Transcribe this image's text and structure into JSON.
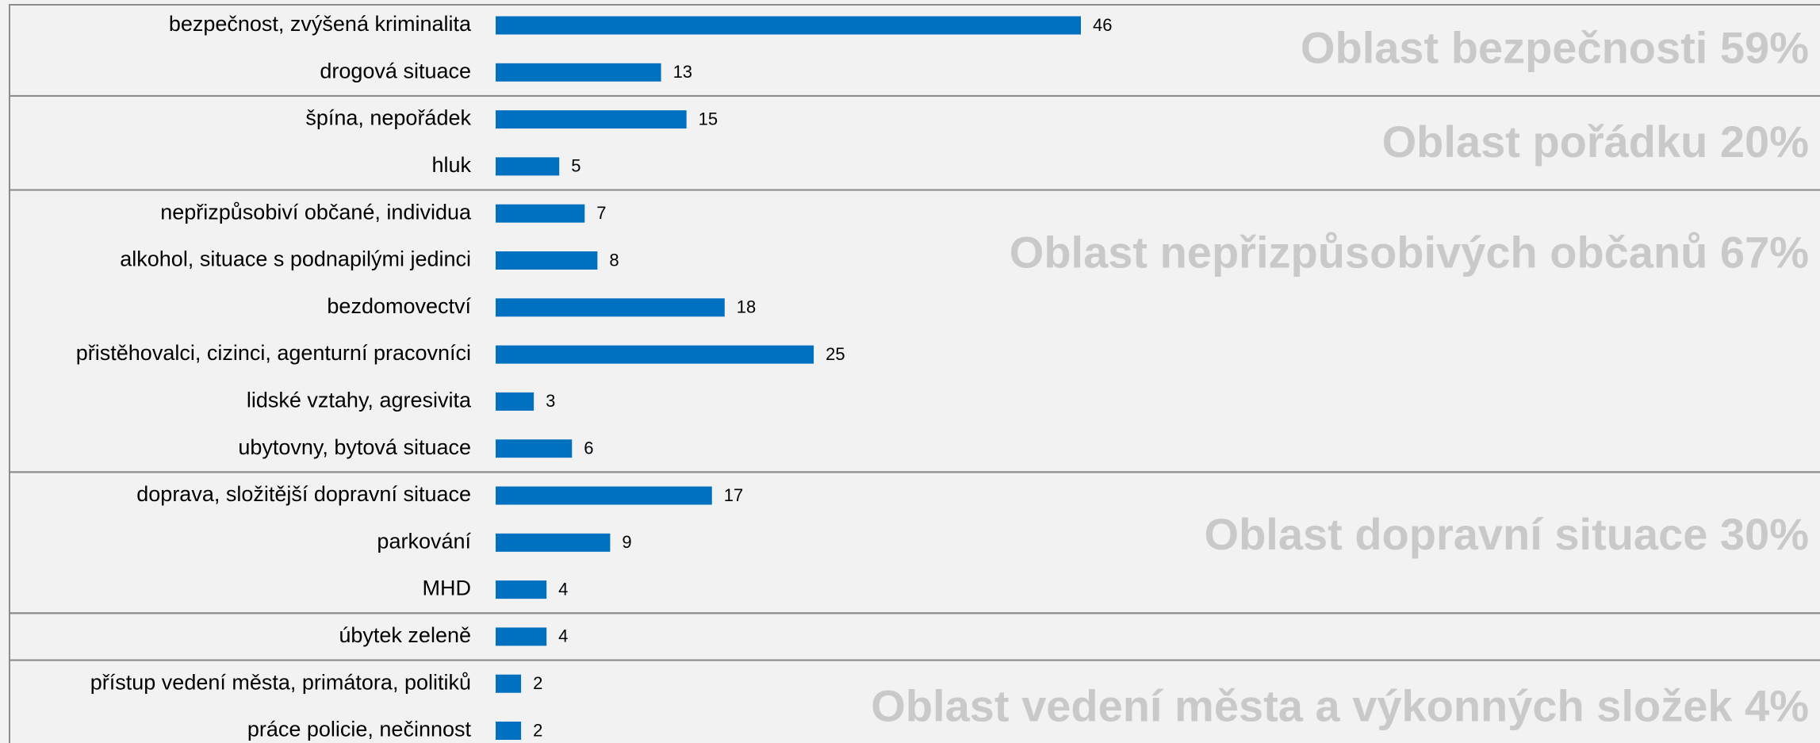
{
  "chart_data": {
    "type": "bar",
    "orientation": "horizontal",
    "color": "#0070c0",
    "groups": [
      {
        "label": "Oblast bezpečnosti 59%",
        "categories": [
          "bezpečnost, zvýšená kriminalita",
          "drogová situace"
        ],
        "values": [
          46,
          13
        ]
      },
      {
        "label": "Oblast pořádku 20%",
        "categories": [
          "špína, nepořádek",
          "hluk"
        ],
        "values": [
          15,
          5
        ]
      },
      {
        "label": "Oblast nepřizpůsobivých občanů  67%",
        "categories": [
          "nepřizpůsobiví občané, individua",
          "alkohol, situace s podnapilými jedinci",
          "bezdomovectví",
          "přistěhovalci, cizinci, agenturní pracovníci",
          "lidské vztahy, agresivita",
          "ubytovny, bytová situace"
        ],
        "values": [
          7,
          8,
          18,
          25,
          3,
          6
        ]
      },
      {
        "label": "Oblast dopravní situace  30%",
        "categories": [
          "doprava, složitější dopravní situace",
          "parkování",
          "MHD"
        ],
        "values": [
          17,
          9,
          4
        ]
      },
      {
        "categories": [
          "úbytek zeleně"
        ],
        "values": [
          4
        ]
      },
      {
        "label": "Oblast vedení města a výkonných složek 4%",
        "categories": [
          "přístup vedení města, primátora, politiků",
          "práce policie, nečinnost"
        ],
        "values": [
          2,
          2
        ]
      }
    ]
  }
}
